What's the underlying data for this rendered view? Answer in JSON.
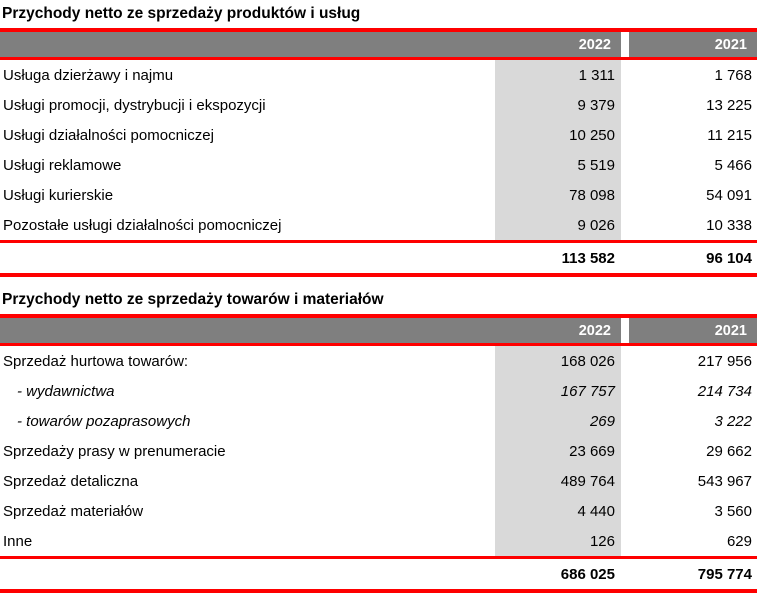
{
  "colors": {
    "rule_red": "#fe0000",
    "header_bg": "#7f7f7f",
    "header_text": "#ffffff",
    "col_2022_shade": "#d9d9d9"
  },
  "tables": [
    {
      "title": "Przychody netto ze sprzedaży produktów i usług",
      "columns": [
        "2022",
        "2021"
      ],
      "rows": [
        {
          "label": "Usługa dzierżawy i najmu",
          "y2022": "1 311",
          "y2021": "1 768"
        },
        {
          "label": "Usługi promocji, dystrybucji i ekspozycji",
          "y2022": "9 379",
          "y2021": "13 225"
        },
        {
          "label": "Usługi działalności pomocniczej",
          "y2022": "10 250",
          "y2021": "11 215"
        },
        {
          "label": "Usługi reklamowe",
          "y2022": "5 519",
          "y2021": "5 466"
        },
        {
          "label": "Usługi kurierskie",
          "y2022": "78 098",
          "y2021": "54 091"
        },
        {
          "label": "Pozostałe usługi działalności pomocniczej",
          "y2022": "9 026",
          "y2021": "10 338"
        }
      ],
      "total": {
        "y2022": "113 582",
        "y2021": "96 104"
      }
    },
    {
      "title": "Przychody netto ze sprzedaży towarów i materiałów",
      "columns": [
        "2022",
        "2021"
      ],
      "rows": [
        {
          "label": "Sprzedaż hurtowa towarów:",
          "y2022": "168 026",
          "y2021": "217 956"
        },
        {
          "label": "- wydawnictwa",
          "y2022": "167 757",
          "y2021": "214 734"
        },
        {
          "label": "- towarów pozaprasowych",
          "y2022": "269",
          "y2021": "3 222"
        },
        {
          "label": "Sprzedaży prasy w prenumeracie",
          "y2022": "23 669",
          "y2021": "29 662"
        },
        {
          "label": "Sprzedaż detaliczna",
          "y2022": "489 764",
          "y2021": "543 967"
        },
        {
          "label": "Sprzedaż materiałów",
          "y2022": "4 440",
          "y2021": "3 560"
        },
        {
          "label": "Inne",
          "y2022": "126",
          "y2021": "629"
        }
      ],
      "total": {
        "y2022": "686 025",
        "y2021": "795 774"
      }
    }
  ]
}
